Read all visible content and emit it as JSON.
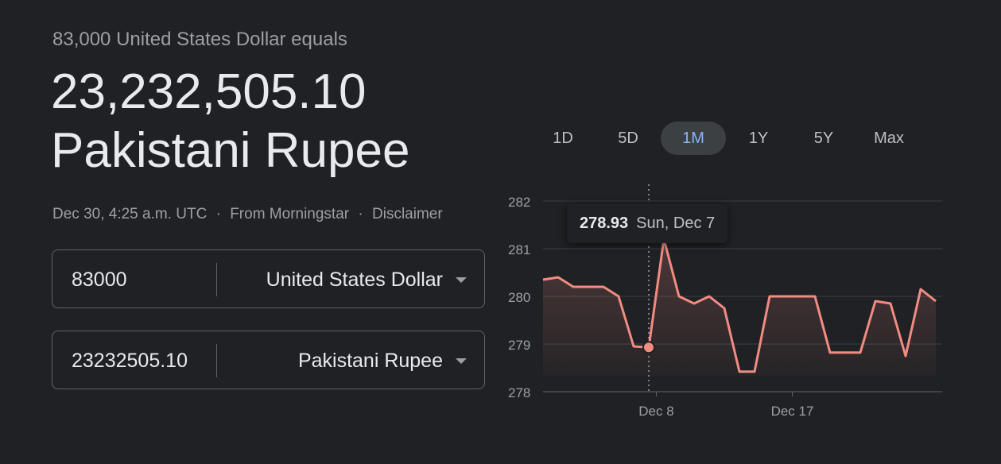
{
  "conversion": {
    "subtitle": "83,000 United States Dollar equals",
    "result_amount": "23,232,505.10",
    "result_currency": "Pakistani Rupee",
    "timestamp": "Dec 30, 4:25 a.m. UTC",
    "source": "From Morningstar",
    "disclaimer": "Disclaimer"
  },
  "from": {
    "value": "83000",
    "currency": "United States Dollar"
  },
  "to": {
    "value": "23232505.10",
    "currency": "Pakistani Rupee"
  },
  "ranges": [
    {
      "label": "1D",
      "active": false
    },
    {
      "label": "5D",
      "active": false
    },
    {
      "label": "1M",
      "active": true
    },
    {
      "label": "1Y",
      "active": false
    },
    {
      "label": "5Y",
      "active": false
    },
    {
      "label": "Max",
      "active": false
    }
  ],
  "tooltip": {
    "value": "278.93",
    "date": "Sun, Dec 7"
  },
  "chart_data": {
    "type": "line",
    "x_ticks": [
      "Dec 8",
      "Dec 17"
    ],
    "y_ticks": [
      278,
      279,
      280,
      281,
      282
    ],
    "ylim": [
      278,
      282
    ],
    "values": [
      280.35,
      280.4,
      280.2,
      280.2,
      280.2,
      280.0,
      278.95,
      278.93,
      281.2,
      280.0,
      279.85,
      280.0,
      279.75,
      278.42,
      278.42,
      280.0,
      280.0,
      280.0,
      280.0,
      278.82,
      278.82,
      278.82,
      279.9,
      279.85,
      278.75,
      280.15,
      279.9
    ],
    "highlight_index": 7,
    "x_tick_indices": [
      7.5,
      16.5
    ],
    "grid": true,
    "colors": {
      "line": "#f28b82",
      "grid": "#3c4043",
      "tick_text": "#9aa0a6"
    }
  }
}
